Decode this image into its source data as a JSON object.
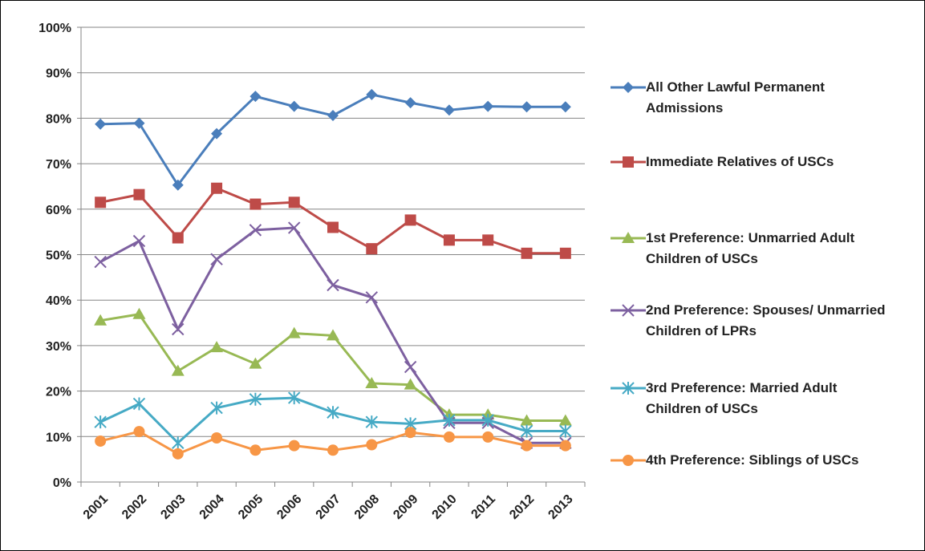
{
  "chart_data": {
    "type": "line",
    "categories": [
      "2001",
      "2002",
      "2003",
      "2004",
      "2005",
      "2006",
      "2007",
      "2008",
      "2009",
      "2010",
      "2011",
      "2012",
      "2013"
    ],
    "ylim": [
      0,
      100
    ],
    "yticks": [
      {
        "value": 0,
        "label": "0%"
      },
      {
        "value": 10,
        "label": "10%"
      },
      {
        "value": 20,
        "label": "20%"
      },
      {
        "value": 30,
        "label": "30%"
      },
      {
        "value": 40,
        "label": "40%"
      },
      {
        "value": 50,
        "label": "50%"
      },
      {
        "value": 60,
        "label": "60%"
      },
      {
        "value": 70,
        "label": "70%"
      },
      {
        "value": 80,
        "label": "80%"
      },
      {
        "value": 90,
        "label": "90%"
      },
      {
        "value": 100,
        "label": "100%"
      }
    ],
    "grid": true,
    "series": [
      {
        "name": "All Other Lawful Permanent Admissions",
        "color": "#4a7ebb",
        "marker": "diamond",
        "values": [
          78.7,
          78.9,
          65.3,
          76.6,
          84.8,
          82.6,
          80.6,
          85.2,
          83.4,
          81.8,
          82.6,
          82.5,
          82.5
        ]
      },
      {
        "name": "Immediate Relatives of USCs",
        "color": "#be4b48",
        "marker": "square",
        "values": [
          61.5,
          63.2,
          53.7,
          64.6,
          61.1,
          61.5,
          56.0,
          51.3,
          57.6,
          53.2,
          53.2,
          50.3,
          50.3
        ]
      },
      {
        "name": "1st Preference: Unmarried Adult Children of USCs",
        "color": "#98b954",
        "marker": "triangle",
        "values": [
          35.5,
          36.9,
          24.4,
          29.6,
          26.0,
          32.7,
          32.2,
          21.7,
          21.4,
          14.8,
          14.8,
          13.5,
          13.5
        ]
      },
      {
        "name": "2nd Preference: Spouses/ Unmarried Children of LPRs",
        "color": "#7d60a0",
        "marker": "x",
        "values": [
          48.4,
          53.0,
          33.6,
          49.0,
          55.4,
          55.9,
          43.3,
          40.6,
          25.3,
          13.0,
          13.0,
          8.6,
          8.6
        ]
      },
      {
        "name": "3rd Preference: Married Adult Children of USCs",
        "color": "#46aac5",
        "marker": "star",
        "values": [
          13.2,
          17.2,
          8.6,
          16.3,
          18.2,
          18.5,
          15.3,
          13.2,
          12.8,
          13.6,
          13.6,
          11.2,
          11.2
        ]
      },
      {
        "name": "4th Preference: Siblings of USCs",
        "color": "#f79646",
        "marker": "circle",
        "values": [
          9.0,
          11.1,
          6.2,
          9.7,
          7.0,
          8.0,
          7.0,
          8.2,
          10.9,
          9.9,
          9.9,
          8.0,
          8.0
        ]
      }
    ]
  }
}
